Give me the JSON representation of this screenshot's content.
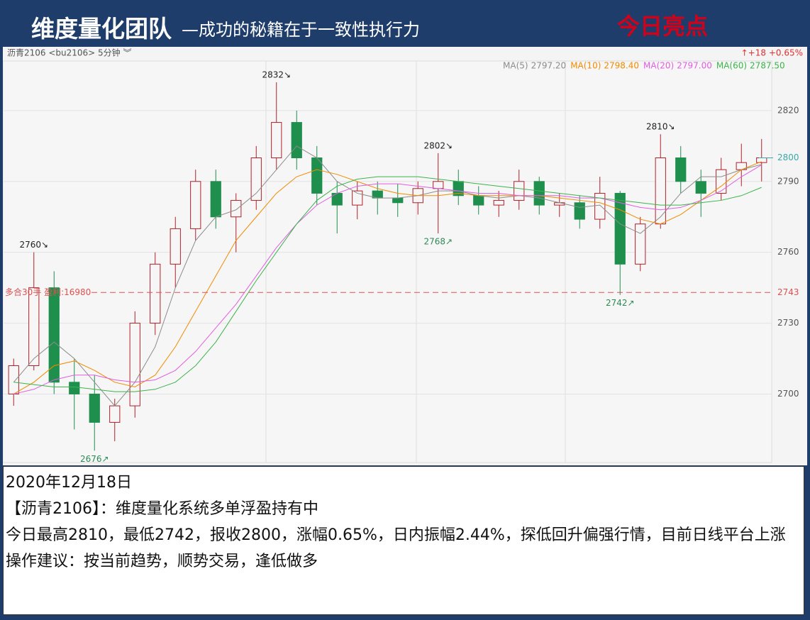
{
  "header": {
    "title": "维度量化团队",
    "subtitle": "—成功的秘籍在于一致性执行力",
    "highlight": "今日亮点"
  },
  "chart_data": {
    "type": "candlestick",
    "symbol": "沥青2106 <bu2106> 5分钟 ︾",
    "change": "↑+18 +0.65%",
    "open": [
      2700,
      2712,
      2745,
      2705,
      2700,
      2688,
      2695,
      2730,
      2755,
      2770,
      2790,
      2775,
      2782,
      2800,
      2815,
      2800,
      2785,
      2780,
      2786,
      2783,
      2781,
      2787,
      2790,
      2784,
      2780,
      2782,
      2790,
      2780,
      2781,
      2774,
      2785,
      2755,
      2772,
      2800,
      2790,
      2785,
      2795,
      2798
    ],
    "high": [
      2715,
      2760,
      2752,
      2715,
      2708,
      2698,
      2735,
      2760,
      2775,
      2795,
      2795,
      2785,
      2805,
      2832,
      2820,
      2805,
      2790,
      2790,
      2790,
      2789,
      2790,
      2802,
      2795,
      2788,
      2786,
      2795,
      2792,
      2785,
      2784,
      2792,
      2786,
      2775,
      2810,
      2805,
      2795,
      2800,
      2806,
      2808
    ],
    "low": [
      2695,
      2710,
      2700,
      2685,
      2676,
      2680,
      2690,
      2725,
      2745,
      2765,
      2770,
      2760,
      2778,
      2795,
      2795,
      2780,
      2768,
      2774,
      2776,
      2775,
      2776,
      2768,
      2780,
      2776,
      2775,
      2778,
      2776,
      2775,
      2770,
      2770,
      2742,
      2752,
      2770,
      2785,
      2775,
      2782,
      2788,
      2790
    ],
    "close": [
      2712,
      2745,
      2705,
      2700,
      2688,
      2695,
      2730,
      2755,
      2770,
      2790,
      2775,
      2782,
      2800,
      2815,
      2800,
      2785,
      2780,
      2786,
      2783,
      2781,
      2787,
      2790,
      2784,
      2780,
      2782,
      2790,
      2780,
      2781,
      2774,
      2785,
      2755,
      2772,
      2800,
      2790,
      2785,
      2795,
      2798,
      2800
    ],
    "series": [
      {
        "name": "MA(5)",
        "value": 2797.2,
        "value_label": "2797.20",
        "color": "#8c8c8c",
        "values": [
          2705,
          2715,
          2722,
          2715,
          2705,
          2695,
          2705,
          2720,
          2745,
          2765,
          2775,
          2778,
          2785,
          2795,
          2805,
          2800,
          2790,
          2785,
          2783,
          2783,
          2784,
          2786,
          2786,
          2784,
          2783,
          2784,
          2783,
          2781,
          2779,
          2780,
          2772,
          2768,
          2775,
          2785,
          2792,
          2792,
          2795,
          2797.2
        ]
      },
      {
        "name": "MA(10)",
        "value": 2798.4,
        "value_label": "2798.40",
        "color": "#f08c00",
        "values": [
          2700,
          2705,
          2712,
          2714,
          2710,
          2705,
          2703,
          2708,
          2720,
          2735,
          2750,
          2765,
          2775,
          2785,
          2792,
          2795,
          2793,
          2790,
          2787,
          2785,
          2784,
          2784,
          2785,
          2784,
          2784,
          2784,
          2784,
          2783,
          2782,
          2781,
          2778,
          2774,
          2772,
          2776,
          2782,
          2788,
          2795,
          2798.4
        ]
      },
      {
        "name": "MA(20)",
        "value": 2797,
        "value_label": "2797.00",
        "color": "#e05ee0",
        "values": [
          2700,
          2702,
          2706,
          2708,
          2708,
          2706,
          2705,
          2706,
          2710,
          2718,
          2728,
          2738,
          2750,
          2762,
          2772,
          2780,
          2785,
          2788,
          2789,
          2789,
          2788,
          2787,
          2786,
          2785,
          2785,
          2784,
          2784,
          2784,
          2783,
          2783,
          2781,
          2779,
          2778,
          2779,
          2782,
          2786,
          2792,
          2797
        ]
      },
      {
        "name": "MA(60)",
        "value": 2787.5,
        "value_label": "2787.50",
        "color": "#3cb44b",
        "values": [
          2705,
          2704,
          2703,
          2703,
          2702,
          2701,
          2701,
          2702,
          2705,
          2712,
          2722,
          2735,
          2748,
          2760,
          2772,
          2782,
          2788,
          2791,
          2792,
          2792,
          2792,
          2791,
          2790,
          2789,
          2788,
          2787,
          2786,
          2785,
          2784,
          2783,
          2782,
          2781,
          2780,
          2780,
          2781,
          2782,
          2784,
          2787.5
        ]
      }
    ],
    "ylim": [
      2671,
      2841
    ],
    "yticks": [
      2700,
      2730,
      2760,
      2790,
      2820
    ],
    "last_price": 2800,
    "position_line": {
      "value": 2743,
      "label": "多合30手 盈利:16980"
    },
    "annotations": [
      {
        "index": 1,
        "value": 2760,
        "label": "2760↘"
      },
      {
        "index": 4,
        "value": 2676,
        "label": "2676↗"
      },
      {
        "index": 13,
        "value": 2832,
        "label": "2832↘"
      },
      {
        "index": 21,
        "value": 2802,
        "label": "2802↘"
      },
      {
        "index": 21,
        "value": 2768,
        "label": "2768↗"
      },
      {
        "index": 30,
        "value": 2742,
        "label": "2742↗"
      },
      {
        "index": 32,
        "value": 2810,
        "label": "2810↘"
      }
    ]
  },
  "notes": {
    "date": "2020年12月18日",
    "line1": "【沥青2106】：维度量化系统多单浮盈持有中",
    "line2": "今日最高2810，最低2742，报收2800，涨幅0.65%，日内振幅2.44%，探低回升偏强行情，目前日线平台上涨",
    "line3": "操作建议：按当前趋势，顺势交易，逢低做多"
  }
}
